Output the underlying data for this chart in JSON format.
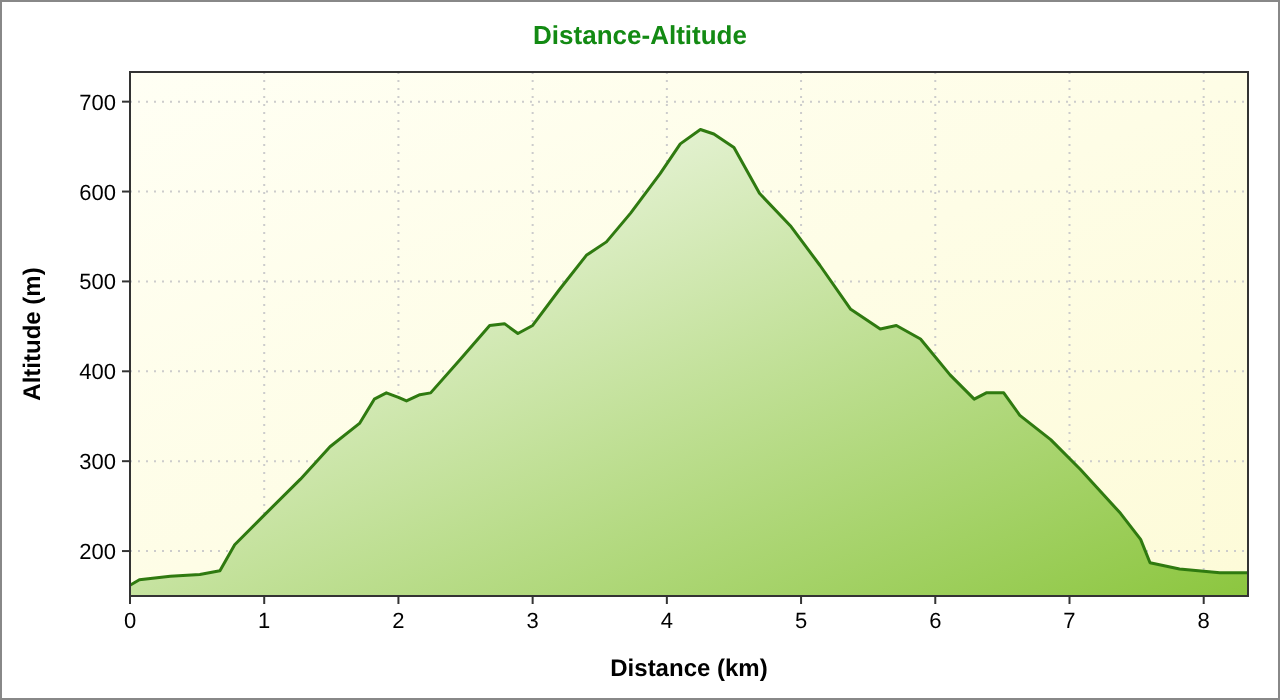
{
  "chart_data": {
    "type": "area",
    "title": "Distance-Altitude",
    "xlabel": "Distance (km)",
    "ylabel": "Altitude (m)",
    "x": [
      0,
      0.07,
      0.3,
      0.52,
      0.67,
      0.78,
      1.0,
      1.27,
      1.49,
      1.71,
      1.82,
      1.91,
      2.0,
      2.06,
      2.16,
      2.24,
      2.46,
      2.68,
      2.79,
      2.89,
      3.0,
      3.2,
      3.4,
      3.55,
      3.73,
      3.95,
      4.1,
      4.25,
      4.35,
      4.5,
      4.69,
      4.92,
      5.14,
      5.37,
      5.59,
      5.71,
      5.89,
      6.11,
      6.29,
      6.38,
      6.51,
      6.63,
      6.86,
      7.08,
      7.38,
      7.53,
      7.6,
      7.82,
      8.12,
      8.33
    ],
    "series": [
      {
        "color": "#8cc63f",
        "values": [
          162,
          168,
          172,
          174,
          178,
          207,
          240,
          280,
          316,
          342,
          369,
          376,
          371,
          367,
          374,
          376,
          413,
          451,
          453,
          442,
          451,
          491,
          529,
          544,
          576,
          620,
          653,
          669,
          664,
          649,
          598,
          562,
          518,
          469,
          447,
          451,
          436,
          396,
          369,
          376,
          376,
          351,
          324,
          291,
          242,
          213,
          187,
          180,
          176,
          176
        ]
      }
    ],
    "xlim": [
      0,
      8.33
    ],
    "xticks": [
      0,
      1,
      2,
      3,
      4,
      5,
      6,
      7,
      8
    ],
    "ylim": [
      150,
      733
    ],
    "yticks": [
      200,
      300,
      400,
      500,
      600,
      700
    ],
    "grid": true
  }
}
